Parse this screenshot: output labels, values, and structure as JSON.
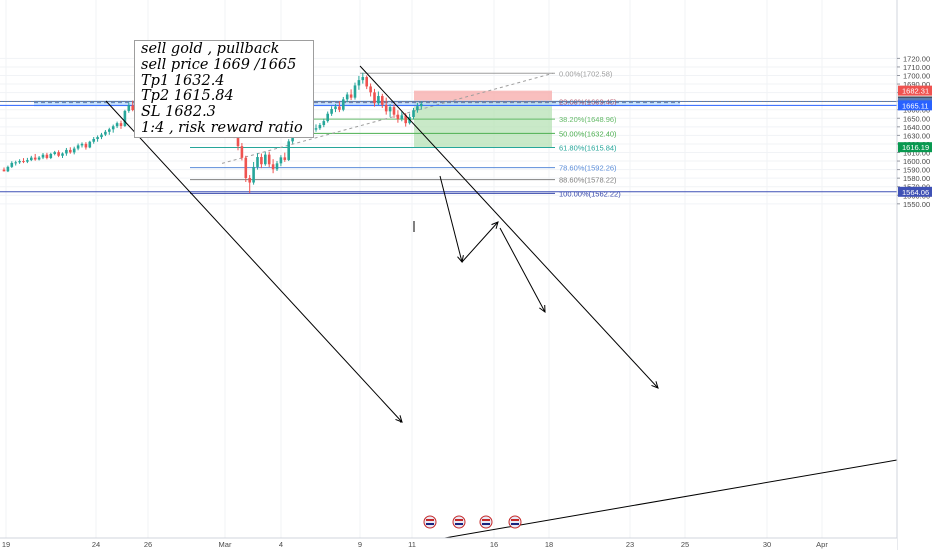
{
  "chart_data": {
    "type": "candlestick",
    "instrument_hint": "gold",
    "x_tick_labels": [
      "19",
      "24",
      "26",
      "Mar",
      "4",
      "9",
      "11",
      "16",
      "18",
      "23",
      "25",
      "30",
      "Apr"
    ],
    "y_ticks": [
      1550,
      1560,
      1570,
      1580,
      1590,
      1600,
      1610,
      1620,
      1630,
      1640,
      1650,
      1660,
      1670,
      1680,
      1690,
      1700,
      1710,
      1720
    ],
    "y_tick_labels": [
      "1550.00",
      "1560.00",
      "1570.00",
      "1580.00",
      "1590.00",
      "1600.00",
      "1610.00",
      "1620.00",
      "1630.00",
      "1640.00",
      "1650.00",
      "1660.00",
      "1670.00",
      "1680.00",
      "1690.00",
      "1700.00",
      "1710.00",
      "1720.00"
    ],
    "ylim": [
      1547,
      1722
    ],
    "price_labels": [
      {
        "text": "1682.31",
        "value": 1682.31,
        "color": "#ef5350"
      },
      {
        "text": "1669.65",
        "value": 1669.65,
        "color": "#5b7db1"
      },
      {
        "text": "1669.57",
        "value": 1669.57,
        "color": "#3d3d3d"
      },
      {
        "text": "1668.25",
        "value": 1668.25,
        "color": "#5b7db1"
      },
      {
        "text": "1665.11",
        "value": 1665.11,
        "color": "#2962ff"
      },
      {
        "text": "1616.19",
        "value": 1616.19,
        "color": "#089950"
      },
      {
        "text": "1564.06",
        "value": 1564.06,
        "color": "#3f51b5"
      }
    ],
    "fib_levels": [
      {
        "text": "0.00%(1702.58)",
        "value": 1702.58,
        "color": "#9e9e9e"
      },
      {
        "text": "23.60%(1669.45)",
        "value": 1669.45,
        "color": "#b85c6e"
      },
      {
        "text": "38.20%(1648.96)",
        "value": 1648.96,
        "color": "#66bb6a"
      },
      {
        "text": "50.00%(1632.40)",
        "value": 1632.4,
        "color": "#4caf50"
      },
      {
        "text": "61.80%(1615.84)",
        "value": 1615.84,
        "color": "#26a69a"
      },
      {
        "text": "78.60%(1592.26)",
        "value": 1592.26,
        "color": "#5b8dd9"
      },
      {
        "text": "88.60%(1578.22)",
        "value": 1578.22,
        "color": "#808080"
      },
      {
        "text": "100.00%(1562.22)",
        "value": 1562.22,
        "color": "#3949ab"
      }
    ],
    "trade_zone": {
      "entry": 1669,
      "stop_loss": 1682.3,
      "target": 1615.84
    },
    "annotation_lines": [
      "sell gold , pullback",
      "sell price 1669 /1665",
      "Tp1 1632.4",
      "Tp2 1615.84",
      "SL 1682.3",
      "1:4 , risk reward ratio"
    ],
    "candles": [
      [
        1590.0,
        1592.5,
        1587.8,
        1588.0
      ],
      [
        1588.0,
        1594.7,
        1587.1,
        1593.2
      ],
      [
        1593.2,
        1599.8,
        1591.9,
        1597.8
      ],
      [
        1597.8,
        1600.4,
        1594.8,
        1598.5
      ],
      [
        1598.5,
        1602.1,
        1596.7,
        1600.0
      ],
      [
        1600.0,
        1603.4,
        1597.6,
        1599.2
      ],
      [
        1599.2,
        1603.7,
        1597.6,
        1601.1
      ],
      [
        1601.1,
        1606.1,
        1599.9,
        1604.0
      ],
      [
        1604.0,
        1608.3,
        1600.4,
        1601.8
      ],
      [
        1601.8,
        1605.9,
        1600.7,
        1604.1
      ],
      [
        1604.1,
        1609.4,
        1602.3,
        1607.4
      ],
      [
        1607.4,
        1609.6,
        1602.0,
        1603.6
      ],
      [
        1603.6,
        1609.7,
        1602.3,
        1608.3
      ],
      [
        1608.3,
        1611.9,
        1606.7,
        1610.4
      ],
      [
        1610.4,
        1612.6,
        1604.6,
        1606.2
      ],
      [
        1606.2,
        1610.1,
        1603.5,
        1608.9
      ],
      [
        1608.9,
        1615.3,
        1606.2,
        1613.0
      ],
      [
        1613.0,
        1616.1,
        1608.6,
        1610.1
      ],
      [
        1610.1,
        1616.8,
        1607.8,
        1614.6
      ],
      [
        1614.6,
        1620.5,
        1612.6,
        1618.3
      ],
      [
        1618.3,
        1621.9,
        1615.8,
        1620.1
      ],
      [
        1620.1,
        1622.1,
        1613.4,
        1615.9
      ],
      [
        1615.9,
        1623.7,
        1615.0,
        1622.6
      ],
      [
        1622.6,
        1628.1,
        1620.3,
        1625.8
      ],
      [
        1625.8,
        1630.0,
        1622.6,
        1628.0
      ],
      [
        1628.0,
        1632.9,
        1625.7,
        1630.9
      ],
      [
        1630.9,
        1636.3,
        1629.2,
        1634.2
      ],
      [
        1634.2,
        1638.9,
        1630.7,
        1637.1
      ],
      [
        1637.1,
        1642.6,
        1633.2,
        1640.7
      ],
      [
        1640.7,
        1646.1,
        1638.6,
        1644.3
      ],
      [
        1644.3,
        1647.2,
        1637.6,
        1641.0
      ],
      [
        1641.0,
        1659.9,
        1639.9,
        1658.6
      ],
      [
        1658.6,
        1668.3,
        1656.4,
        1665.1
      ],
      [
        1665.1,
        1670.7,
        1658.2,
        1659.6
      ],
      [
        1659.6,
        1679.9,
        1658.6,
        1677.7
      ],
      [
        1677.7,
        1689.5,
        1675.7,
        1687.0
      ],
      [
        1687.0,
        1688.6,
        1674.4,
        1676.2
      ],
      [
        1676.2,
        1678.9,
        1662.9,
        1665.1
      ],
      [
        1665.1,
        1667.2,
        1645.8,
        1648.5
      ],
      [
        1648.5,
        1657.8,
        1645.9,
        1655.2
      ],
      [
        1655.2,
        1658.9,
        1643.7,
        1646.1
      ],
      [
        1646.1,
        1649.2,
        1636.2,
        1640.1
      ],
      [
        1640.1,
        1654.7,
        1636.6,
        1651.0
      ],
      [
        1651.0,
        1653.4,
        1637.3,
        1641.8
      ],
      [
        1641.8,
        1644.8,
        1630.3,
        1635.4
      ],
      [
        1635.4,
        1646.5,
        1631.0,
        1643.0
      ],
      [
        1643.0,
        1644.5,
        1628.8,
        1632.3
      ],
      [
        1632.3,
        1643.1,
        1629.6,
        1638.2
      ],
      [
        1638.2,
        1648.7,
        1636.7,
        1645.8
      ],
      [
        1645.8,
        1648.8,
        1635.7,
        1638.9
      ],
      [
        1638.9,
        1650.6,
        1635.9,
        1646.4
      ],
      [
        1646.4,
        1652.2,
        1637.9,
        1641.3
      ],
      [
        1641.3,
        1643.6,
        1627.9,
        1631.5
      ],
      [
        1631.5,
        1643.0,
        1628.5,
        1638.6
      ],
      [
        1638.6,
        1647.8,
        1636.2,
        1644.3
      ],
      [
        1644.3,
        1650.2,
        1641.3,
        1648.3
      ],
      [
        1648.3,
        1653.9,
        1643.5,
        1647.2
      ],
      [
        1647.2,
        1650.2,
        1637.6,
        1640.8
      ],
      [
        1640.8,
        1644.5,
        1632.6,
        1636.5
      ],
      [
        1636.5,
        1639.7,
        1626.8,
        1630.4
      ],
      [
        1630.4,
        1633.9,
        1612.6,
        1617.4
      ],
      [
        1617.4,
        1621.1,
        1600.7,
        1603.8
      ],
      [
        1603.8,
        1606.2,
        1575.5,
        1580.2
      ],
      [
        1580.2,
        1583.7,
        1562.6,
        1574.9
      ],
      [
        1574.9,
        1598.9,
        1572.4,
        1593.1
      ],
      [
        1593.1,
        1609.1,
        1590.0,
        1604.7
      ],
      [
        1604.7,
        1608.8,
        1591.7,
        1596.3
      ],
      [
        1596.3,
        1611.0,
        1594.5,
        1607.5
      ],
      [
        1607.5,
        1610.9,
        1592.9,
        1596.2
      ],
      [
        1596.2,
        1602.2,
        1585.8,
        1590.4
      ],
      [
        1590.4,
        1600.0,
        1588.3,
        1597.3
      ],
      [
        1597.3,
        1606.9,
        1594.0,
        1604.3
      ],
      [
        1604.3,
        1609.9,
        1599.0,
        1601.3
      ],
      [
        1601.3,
        1625.6,
        1600.0,
        1623.0
      ],
      [
        1623.0,
        1647.3,
        1620.3,
        1644.2
      ],
      [
        1644.2,
        1647.6,
        1631.6,
        1637.8
      ],
      [
        1637.8,
        1647.1,
        1635.3,
        1643.1
      ],
      [
        1643.1,
        1646.0,
        1631.6,
        1635.0
      ],
      [
        1635.0,
        1644.0,
        1632.2,
        1640.2
      ],
      [
        1640.2,
        1643.5,
        1633.1,
        1636.7
      ],
      [
        1636.7,
        1642.8,
        1634.3,
        1638.4
      ],
      [
        1638.4,
        1644.4,
        1636.4,
        1642.1
      ],
      [
        1642.1,
        1649.5,
        1639.6,
        1646.7
      ],
      [
        1646.7,
        1657.9,
        1644.9,
        1655.3
      ],
      [
        1655.3,
        1664.1,
        1652.8,
        1660.8
      ],
      [
        1660.8,
        1666.6,
        1657.2,
        1663.7
      ],
      [
        1663.7,
        1670.0,
        1657.2,
        1660.0
      ],
      [
        1660.0,
        1674.9,
        1658.2,
        1672.1
      ],
      [
        1672.1,
        1680.5,
        1668.7,
        1677.8
      ],
      [
        1677.8,
        1683.8,
        1671.3,
        1674.1
      ],
      [
        1674.1,
        1691.6,
        1671.8,
        1688.4
      ],
      [
        1688.4,
        1699.5,
        1683.3,
        1694.6
      ],
      [
        1694.6,
        1703.2,
        1690.5,
        1698.2
      ],
      [
        1698.2,
        1700.1,
        1684.1,
        1687.2
      ],
      [
        1687.2,
        1690.7,
        1675.5,
        1680.3
      ],
      [
        1680.3,
        1684.3,
        1663.6,
        1667.7
      ],
      [
        1667.7,
        1681.3,
        1665.3,
        1676.0
      ],
      [
        1676.0,
        1678.6,
        1662.1,
        1665.7
      ],
      [
        1665.7,
        1674.1,
        1654.3,
        1658.1
      ],
      [
        1658.1,
        1666.5,
        1651.6,
        1663.1
      ],
      [
        1663.1,
        1666.1,
        1650.5,
        1654.2
      ],
      [
        1654.2,
        1659.4,
        1644.8,
        1649.1
      ],
      [
        1649.1,
        1657.8,
        1646.5,
        1653.5
      ],
      [
        1653.5,
        1656.2,
        1640.3,
        1644.3
      ],
      [
        1644.3,
        1655.5,
        1642.7,
        1651.5
      ],
      [
        1651.5,
        1662.2,
        1648.6,
        1659.4
      ],
      [
        1659.4,
        1668.0,
        1656.5,
        1664.1
      ],
      [
        1664.1,
        1669.6,
        1660.2,
        1666.8
      ]
    ]
  }
}
